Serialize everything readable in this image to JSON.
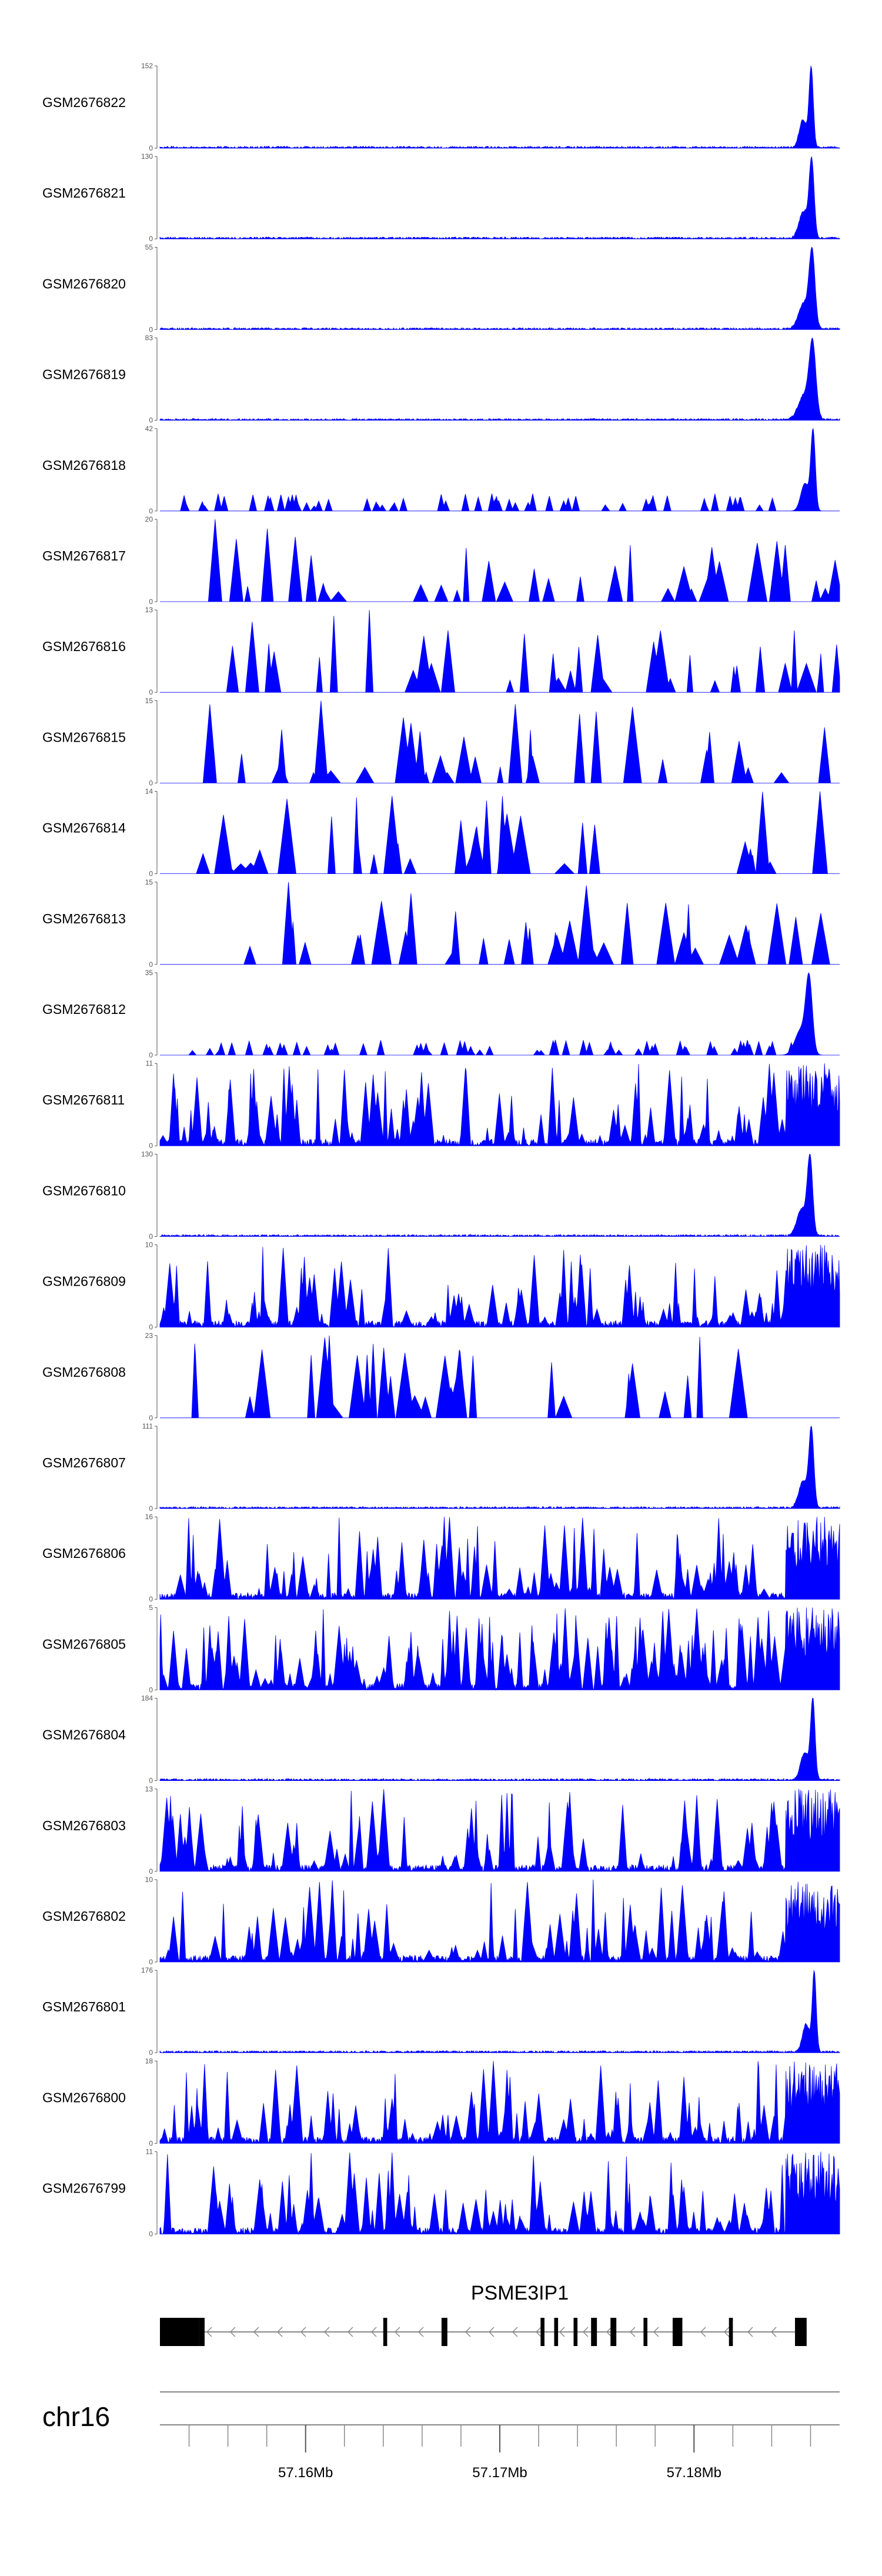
{
  "chart_data": {
    "type": "area",
    "title": "",
    "color": "#0000ff",
    "line_color": "#000000",
    "samples": [
      {
        "name": "GSM2676822",
        "ymax": 152,
        "ymin": 0,
        "profile": "peak"
      },
      {
        "name": "GSM2676821",
        "ymax": 130,
        "ymin": 0,
        "profile": "peak"
      },
      {
        "name": "GSM2676820",
        "ymax": 55,
        "ymin": 0,
        "profile": "peak"
      },
      {
        "name": "GSM2676819",
        "ymax": 83,
        "ymin": 0,
        "profile": "peak"
      },
      {
        "name": "GSM2676818",
        "ymax": 42,
        "ymin": 0,
        "profile": "peak-noisy"
      },
      {
        "name": "GSM2676817",
        "ymax": 20,
        "ymin": 0,
        "profile": "sparse"
      },
      {
        "name": "GSM2676816",
        "ymax": 13,
        "ymin": 0,
        "profile": "sparse"
      },
      {
        "name": "GSM2676815",
        "ymax": 15,
        "ymin": 0,
        "profile": "sparse"
      },
      {
        "name": "GSM2676814",
        "ymax": 14,
        "ymin": 0,
        "profile": "sparse"
      },
      {
        "name": "GSM2676813",
        "ymax": 15,
        "ymin": 0,
        "profile": "sparse"
      },
      {
        "name": "GSM2676812",
        "ymax": 35,
        "ymin": 0,
        "profile": "peak-noisy"
      },
      {
        "name": "GSM2676811",
        "ymax": 11,
        "ymin": 0,
        "profile": "dense"
      },
      {
        "name": "GSM2676810",
        "ymax": 130,
        "ymin": 0,
        "profile": "peak"
      },
      {
        "name": "GSM2676809",
        "ymax": 10,
        "ymin": 0,
        "profile": "dense"
      },
      {
        "name": "GSM2676808",
        "ymax": 23,
        "ymin": 0,
        "profile": "sparse"
      },
      {
        "name": "GSM2676807",
        "ymax": 111,
        "ymin": 0,
        "profile": "peak"
      },
      {
        "name": "GSM2676806",
        "ymax": 16,
        "ymin": 0,
        "profile": "dense"
      },
      {
        "name": "GSM2676805",
        "ymax": 5,
        "ymin": 0,
        "profile": "very-dense"
      },
      {
        "name": "GSM2676804",
        "ymax": 184,
        "ymin": 0,
        "profile": "peak"
      },
      {
        "name": "GSM2676803",
        "ymax": 13,
        "ymin": 0,
        "profile": "dense"
      },
      {
        "name": "GSM2676802",
        "ymax": 10,
        "ymin": 0,
        "profile": "dense"
      },
      {
        "name": "GSM2676801",
        "ymax": 176,
        "ymin": 0,
        "profile": "peak"
      },
      {
        "name": "GSM2676800",
        "ymax": 18,
        "ymin": 0,
        "profile": "dense"
      },
      {
        "name": "GSM2676799",
        "ymax": 11,
        "ymin": 0,
        "profile": "dense"
      }
    ],
    "gene": {
      "name": "PSME3IP1",
      "strand": "-",
      "exons_mb": [
        [
          57.1525,
          57.1545
        ],
        [
          57.1545,
          57.1548
        ],
        [
          57.164,
          57.1642
        ],
        [
          57.167,
          57.1673
        ],
        [
          57.1721,
          57.1723
        ],
        [
          57.1728,
          57.173
        ],
        [
          57.1738,
          57.174
        ],
        [
          57.1747,
          57.175
        ],
        [
          57.1757,
          57.176
        ],
        [
          57.1774,
          57.1776
        ],
        [
          57.1789,
          57.1794
        ],
        [
          57.1818,
          57.182
        ],
        [
          57.1852,
          57.1858
        ]
      ]
    },
    "chromosome": "chr16",
    "x_range_mb": [
      57.1525,
      57.1875
    ],
    "x_ticks_mb": [
      57.16,
      57.17,
      57.18
    ],
    "x_tick_labels": [
      "57.16Mb",
      "57.17Mb",
      "57.18Mb"
    ],
    "minor_tick_step_mb": 0.002
  }
}
